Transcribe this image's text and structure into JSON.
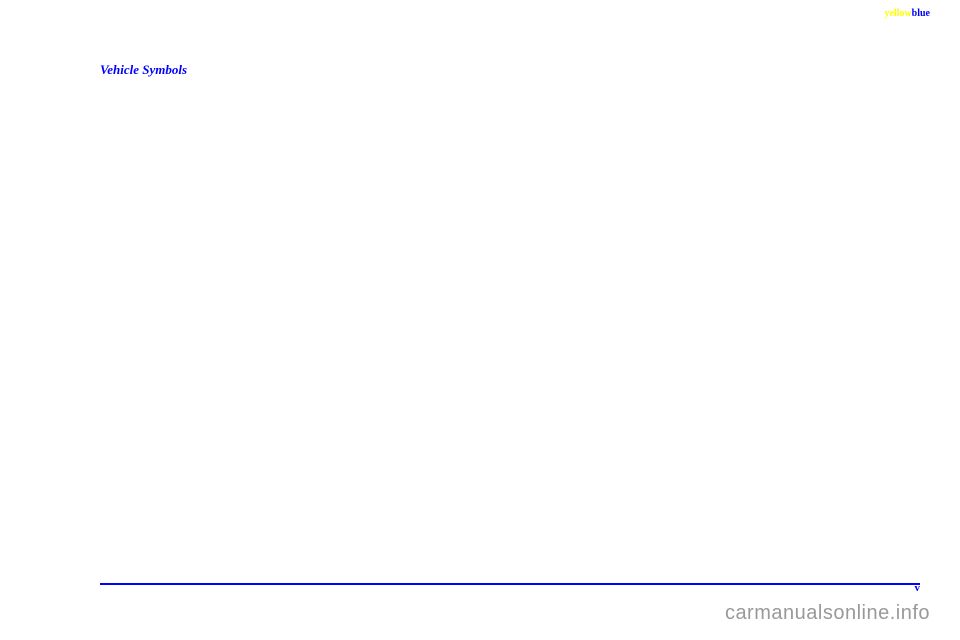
{
  "header": {
    "marker_yellow": "yellow",
    "marker_blue": "blue"
  },
  "section": {
    "title": "Vehicle Symbols"
  },
  "footer": {
    "page_number": "v"
  },
  "watermark": {
    "text": "carmanualsonline.info"
  },
  "colors": {
    "primary_blue": "#0000ff",
    "highlight_yellow": "#ffff00",
    "watermark_gray": "#999999",
    "background": "#ffffff"
  }
}
